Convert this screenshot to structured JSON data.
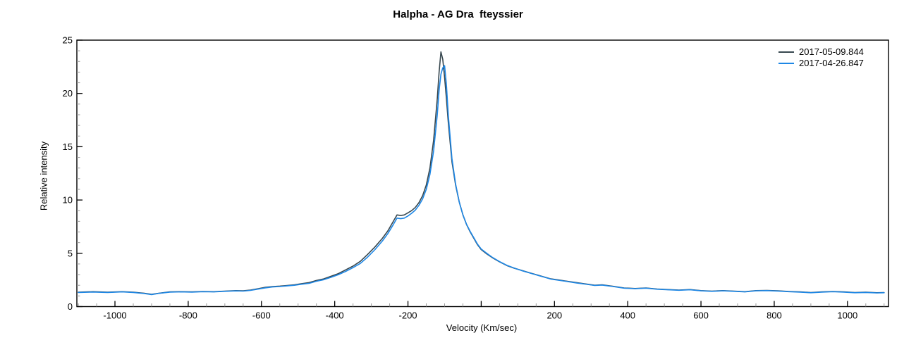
{
  "chart": {
    "title": "Halpha - AG Dra  fteyssier",
    "xlabel": "Velocity (Km/sec)",
    "ylabel": "Relative intensity"
  },
  "chart_data": {
    "type": "line",
    "title": "Halpha - AG Dra  fteyssier",
    "xlabel": "Velocity (Km/sec)",
    "ylabel": "Relative intensity",
    "xlim": [
      -1104,
      1112
    ],
    "ylim": [
      0,
      25
    ],
    "grid": false,
    "legend_position": "top-right-inside",
    "frame": true,
    "axis_color": "#000000",
    "minor_tick_color": "#999999",
    "x_major_ticks": [
      -1000,
      -800,
      -600,
      -400,
      -200,
      0,
      200,
      400,
      600,
      800,
      1000
    ],
    "x_tick_labels": [
      "-1000",
      "-800",
      "-600",
      "-400",
      "-200",
      "",
      "200",
      "400",
      "600",
      "800",
      "1000"
    ],
    "x_minor_step": 50,
    "y_major_ticks": [
      0,
      5,
      10,
      15,
      20,
      25
    ],
    "y_tick_labels": [
      "0",
      "5",
      "10",
      "15",
      "20",
      "25"
    ],
    "y_minor_step": 1,
    "x": [
      -1100,
      -1060,
      -1020,
      -980,
      -950,
      -920,
      -900,
      -880,
      -850,
      -820,
      -790,
      -760,
      -730,
      -700,
      -670,
      -650,
      -630,
      -610,
      -590,
      -570,
      -550,
      -530,
      -510,
      -490,
      -470,
      -450,
      -430,
      -410,
      -390,
      -370,
      -350,
      -330,
      -310,
      -290,
      -270,
      -255,
      -240,
      -230,
      -220,
      -210,
      -200,
      -190,
      -180,
      -170,
      -160,
      -150,
      -140,
      -130,
      -120,
      -115,
      -110,
      -105,
      -100,
      -95,
      -90,
      -80,
      -70,
      -60,
      -50,
      -40,
      -30,
      -20,
      -10,
      0,
      15,
      30,
      50,
      70,
      90,
      110,
      130,
      150,
      170,
      190,
      210,
      230,
      260,
      290,
      310,
      330,
      360,
      390,
      420,
      450,
      480,
      510,
      540,
      570,
      600,
      630,
      660,
      690,
      720,
      750,
      780,
      810,
      840,
      870,
      900,
      930,
      960,
      990,
      1020,
      1050,
      1080,
      1100
    ],
    "series": [
      {
        "name": "2017-05-09.844",
        "color": "#37474f",
        "values": [
          1.35,
          1.4,
          1.35,
          1.4,
          1.35,
          1.25,
          1.15,
          1.25,
          1.38,
          1.4,
          1.38,
          1.42,
          1.4,
          1.45,
          1.5,
          1.48,
          1.55,
          1.68,
          1.8,
          1.88,
          1.92,
          1.98,
          2.05,
          2.15,
          2.25,
          2.45,
          2.6,
          2.85,
          3.1,
          3.45,
          3.8,
          4.25,
          4.9,
          5.6,
          6.4,
          7.1,
          8.0,
          8.6,
          8.55,
          8.6,
          8.8,
          9.0,
          9.3,
          9.75,
          10.4,
          11.4,
          13.0,
          15.6,
          19.5,
          22.0,
          23.9,
          23.2,
          21.5,
          19.5,
          17.3,
          13.6,
          11.4,
          9.8,
          8.6,
          7.7,
          7.0,
          6.4,
          5.8,
          5.35,
          4.95,
          4.6,
          4.2,
          3.85,
          3.6,
          3.4,
          3.2,
          3.0,
          2.8,
          2.6,
          2.5,
          2.4,
          2.25,
          2.1,
          2.0,
          2.05,
          1.9,
          1.75,
          1.7,
          1.75,
          1.65,
          1.6,
          1.55,
          1.6,
          1.5,
          1.45,
          1.5,
          1.45,
          1.4,
          1.5,
          1.52,
          1.48,
          1.42,
          1.38,
          1.32,
          1.38,
          1.42,
          1.38,
          1.32,
          1.35,
          1.3,
          1.32
        ]
      },
      {
        "name": "2017-04-26.847",
        "color": "#1e87e5",
        "values": [
          1.33,
          1.37,
          1.33,
          1.38,
          1.33,
          1.23,
          1.13,
          1.24,
          1.36,
          1.38,
          1.36,
          1.4,
          1.38,
          1.43,
          1.47,
          1.45,
          1.52,
          1.64,
          1.76,
          1.84,
          1.88,
          1.94,
          2.0,
          2.1,
          2.18,
          2.38,
          2.52,
          2.75,
          3.0,
          3.3,
          3.65,
          4.05,
          4.65,
          5.35,
          6.15,
          6.85,
          7.7,
          8.3,
          8.25,
          8.3,
          8.5,
          8.75,
          9.05,
          9.5,
          10.1,
          11.0,
          12.4,
          14.6,
          18.0,
          20.3,
          21.8,
          22.4,
          22.6,
          20.8,
          18.0,
          13.9,
          11.5,
          9.8,
          8.6,
          7.72,
          7.05,
          6.45,
          5.85,
          5.4,
          5.0,
          4.63,
          4.22,
          3.87,
          3.62,
          3.38,
          3.18,
          2.98,
          2.78,
          2.58,
          2.48,
          2.38,
          2.22,
          2.08,
          1.98,
          2.02,
          1.88,
          1.73,
          1.68,
          1.73,
          1.63,
          1.58,
          1.53,
          1.58,
          1.48,
          1.43,
          1.48,
          1.43,
          1.38,
          1.48,
          1.5,
          1.46,
          1.4,
          1.36,
          1.3,
          1.36,
          1.4,
          1.36,
          1.3,
          1.33,
          1.28,
          1.3
        ]
      }
    ]
  }
}
